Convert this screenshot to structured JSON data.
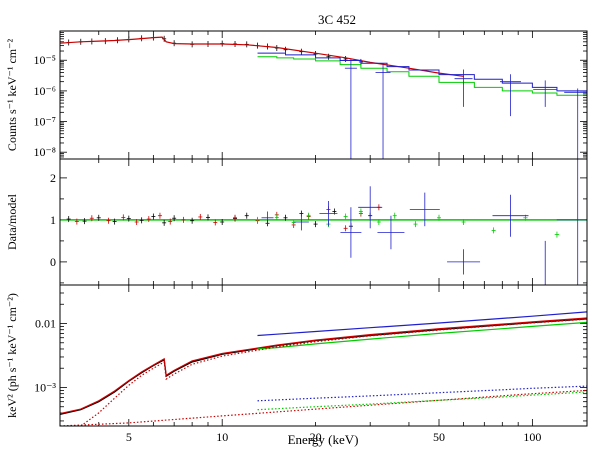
{
  "title": "3C 452",
  "xlabel": "Energy (keV)",
  "colors": {
    "black": "#000000",
    "red": "#cc0000",
    "green": "#00cc00",
    "blue": "#1f1fcc",
    "frame": "#000000"
  },
  "chart_data": [
    {
      "type": "scatter",
      "panel": "counts-spectrum",
      "ylabel": "Counts s⁻¹ keV⁻¹ cm⁻²",
      "x_scale": "log",
      "y_scale": "log",
      "xlim": [
        3,
        150
      ],
      "ylim": [
        6e-09,
        9e-05
      ],
      "y_ticks": [
        {
          "v": 1e-05,
          "label": "10⁻⁵"
        },
        {
          "v": 1e-06,
          "label": "10⁻⁶"
        },
        {
          "v": 1e-07,
          "label": "10⁻⁷"
        },
        {
          "v": 1e-08,
          "label": "10⁻⁸"
        }
      ],
      "series": [
        {
          "color": "#000000",
          "style": "points",
          "x": [
            3.2,
            3.5,
            3.8,
            4.2,
            4.6,
            5.0,
            5.5,
            6.0,
            6.5,
            7.0,
            8.0,
            9.0,
            10,
            11,
            12,
            13,
            14,
            15,
            16,
            18,
            20,
            22,
            25,
            28
          ],
          "y": [
            3.8e-05,
            4e-05,
            4.1e-05,
            4.2e-05,
            4.5e-05,
            4.8e-05,
            5.2e-05,
            5.5e-05,
            5e-05,
            3.6e-05,
            3.3e-05,
            3.4e-05,
            3.5e-05,
            3.4e-05,
            3.3e-05,
            3e-05,
            2.8e-05,
            2.5e-05,
            2.2e-05,
            1.9e-05,
            1.6e-05,
            1.3e-05,
            1.1e-05,
            8.8e-06
          ]
        },
        {
          "color": "#cc0000",
          "style": "line",
          "x": [
            3.0,
            3.5,
            4.0,
            4.5,
            5.0,
            5.5,
            6.0,
            6.4,
            6.6,
            7.0,
            8.0,
            9.0,
            10,
            12,
            15,
            20,
            25,
            30,
            40,
            50,
            60
          ],
          "y": [
            3.6e-05,
            4e-05,
            4.2e-05,
            4.4e-05,
            4.7e-05,
            5.1e-05,
            5.5e-05,
            5.7e-05,
            4e-05,
            3.5e-05,
            3.4e-05,
            3.4e-05,
            3.4e-05,
            3.2e-05,
            2.6e-05,
            1.7e-05,
            1.2e-05,
            8.5e-06,
            5.5e-06,
            3.8e-06,
            3e-06
          ]
        },
        {
          "color": "#00cc00",
          "style": "step",
          "x": [
            13,
            15,
            17,
            20,
            24,
            28,
            34,
            40,
            50,
            65,
            80,
            100,
            120,
            150
          ],
          "y": [
            1.3e-05,
            1.2e-05,
            1.1e-05,
            9.5e-06,
            7.2e-06,
            5.5e-06,
            4.2e-06,
            3e-06,
            1.9e-06,
            1.3e-06,
            1e-06,
            8.5e-07,
            7.2e-07,
            6e-07
          ]
        },
        {
          "color": "#1f1fcc",
          "style": "step",
          "x": [
            13,
            16,
            20,
            24,
            28,
            34,
            40,
            50,
            65,
            80,
            100,
            120,
            150
          ],
          "y": [
            1.7e-05,
            1.5e-05,
            1.2e-05,
            9.8e-06,
            8e-06,
            6.2e-06,
            4.8e-06,
            3.4e-06,
            2.4e-06,
            1.8e-06,
            1.3e-06,
            1e-06,
            8.2e-07
          ]
        },
        {
          "color": "#1f1fcc",
          "style": "errors",
          "x": [
            26,
            33,
            60,
            85,
            110,
            140
          ],
          "y": [
            5.5e-06,
            4e-06,
            2.5e-06,
            2e-06,
            1.1e-06,
            9e-07
          ],
          "ylo": [
            6e-09,
            6e-09,
            3e-07,
            1.5e-07,
            3e-07,
            6e-09
          ],
          "yhi": [
            1.1e-05,
            8e-06,
            5e-06,
            3.5e-06,
            2.2e-06,
            1.2e-06
          ]
        }
      ]
    },
    {
      "type": "scatter",
      "panel": "ratio",
      "ylabel": "Data/model",
      "x_scale": "log",
      "y_scale": "linear",
      "xlim": [
        3,
        150
      ],
      "ylim": [
        -0.55,
        2.45
      ],
      "y_ticks": [
        {
          "v": 0,
          "label": "0"
        },
        {
          "v": 1,
          "label": "1"
        },
        {
          "v": 2,
          "label": "2"
        }
      ],
      "reference_line": 1,
      "series": [
        {
          "color": "#000000",
          "style": "points",
          "x": [
            3.2,
            3.6,
            4.0,
            4.5,
            5.0,
            5.5,
            6.0,
            6.5,
            7.0,
            8.0,
            9.0,
            10,
            11,
            12,
            14,
            16,
            18,
            20,
            23,
            26,
            30
          ],
          "y": [
            1.02,
            0.97,
            1.05,
            0.96,
            1.03,
            0.99,
            1.08,
            0.93,
            1.04,
            0.98,
            1.06,
            0.95,
            1.03,
            1.1,
            0.92,
            1.05,
            1.15,
            0.9,
            1.2,
            0.85,
            1.1
          ]
        },
        {
          "color": "#cc0000",
          "style": "points",
          "x": [
            3.4,
            3.8,
            4.3,
            4.8,
            5.3,
            5.8,
            6.3,
            6.8,
            7.5,
            8.5,
            9.5,
            11,
            13,
            15,
            17,
            19,
            22,
            25,
            28,
            32
          ],
          "y": [
            0.96,
            1.04,
            0.98,
            1.06,
            0.95,
            1.02,
            1.1,
            0.96,
            1.0,
            1.07,
            0.94,
            1.05,
            0.98,
            1.12,
            0.88,
            1.08,
            1.25,
            0.8,
            1.15,
            1.3
          ]
        },
        {
          "color": "#00cc00",
          "style": "points",
          "x": [
            13,
            15,
            17,
            19,
            22,
            25,
            28,
            32,
            36,
            42,
            50,
            60,
            75,
            95,
            120
          ],
          "y": [
            1.0,
            1.06,
            0.94,
            1.1,
            0.9,
            1.08,
            1.2,
            0.95,
            1.1,
            0.9,
            1.05,
            0.95,
            0.75,
            1.05,
            0.65
          ]
        },
        {
          "color": "#1f1fcc",
          "style": "errors",
          "x": [
            14,
            18,
            22,
            26,
            30,
            35,
            45,
            60,
            85,
            110,
            140
          ],
          "y": [
            1.05,
            0.95,
            1.15,
            0.7,
            1.3,
            0.7,
            1.25,
            0.0,
            1.1,
            -0.6,
            1.0
          ],
          "ylo": [
            0.9,
            0.75,
            0.85,
            0.1,
            0.8,
            0.3,
            0.85,
            -0.3,
            0.6,
            -0.55,
            -0.55
          ],
          "yhi": [
            1.2,
            1.15,
            1.45,
            1.3,
            1.8,
            1.1,
            1.65,
            0.3,
            1.6,
            0.5,
            2.45
          ]
        }
      ]
    },
    {
      "type": "line",
      "panel": "unfolded-model",
      "ylabel": "keV² (ph s⁻¹ keV⁻¹ cm⁻²)",
      "x_scale": "log",
      "y_scale": "log",
      "xlim": [
        3,
        150
      ],
      "ylim": [
        0.00025,
        0.04
      ],
      "y_ticks": [
        {
          "v": 0.01,
          "label": "0.01"
        },
        {
          "v": 0.001,
          "label": "10⁻³"
        }
      ],
      "x_ticks": [
        {
          "v": 5,
          "label": "5"
        },
        {
          "v": 10,
          "label": "10"
        },
        {
          "v": 20,
          "label": "20"
        },
        {
          "v": 50,
          "label": "50"
        },
        {
          "v": 100,
          "label": "100"
        }
      ],
      "series": [
        {
          "color": "#000000",
          "style": "line",
          "x": [
            3.0,
            3.5,
            4.0,
            4.5,
            5.0,
            5.5,
            6.0,
            6.5,
            6.6,
            7.0,
            8.0,
            10,
            15,
            20,
            30,
            50,
            80,
            100,
            150
          ],
          "y": [
            0.00038,
            0.00045,
            0.0006,
            0.00085,
            0.00125,
            0.0017,
            0.0022,
            0.0027,
            0.0015,
            0.0018,
            0.0025,
            0.0033,
            0.0045,
            0.0054,
            0.0065,
            0.008,
            0.0095,
            0.0103,
            0.0118
          ]
        },
        {
          "color": "#cc0000",
          "style": "line",
          "x": [
            3.0,
            3.5,
            4.0,
            4.5,
            5.0,
            5.5,
            6.0,
            6.5,
            6.6,
            7.0,
            8.0,
            10,
            15,
            20,
            30,
            50,
            80,
            100,
            150
          ],
          "y": [
            0.00039,
            0.00046,
            0.00062,
            0.00088,
            0.00128,
            0.00175,
            0.00225,
            0.0028,
            0.00155,
            0.00185,
            0.0026,
            0.0034,
            0.0046,
            0.0055,
            0.0067,
            0.0083,
            0.0098,
            0.0106,
            0.0122
          ]
        },
        {
          "color": "#00cc00",
          "style": "line",
          "x": [
            13,
            15,
            20,
            30,
            50,
            80,
            100,
            150
          ],
          "y": [
            0.004,
            0.0042,
            0.0048,
            0.0057,
            0.007,
            0.0083,
            0.009,
            0.0104
          ]
        },
        {
          "color": "#1f1fcc",
          "style": "line",
          "x": [
            13,
            15,
            20,
            30,
            50,
            80,
            100,
            150
          ],
          "y": [
            0.0065,
            0.0068,
            0.0075,
            0.0086,
            0.0102,
            0.012,
            0.013,
            0.0152
          ]
        },
        {
          "color": "#cc0000",
          "style": "dotted",
          "x": [
            3.5,
            4.0,
            4.5,
            5.0,
            5.5,
            6.0,
            6.5,
            6.6,
            7.0,
            8.0,
            10,
            15,
            20,
            30,
            50,
            80,
            100,
            150
          ],
          "y": [
            0.00025,
            0.0004,
            0.00068,
            0.00108,
            0.00155,
            0.002,
            0.0025,
            0.00135,
            0.00162,
            0.0023,
            0.0031,
            0.0043,
            0.0052,
            0.0064,
            0.0079,
            0.0094,
            0.0102,
            0.0117
          ]
        },
        {
          "color": "#cc0000",
          "style": "dotted",
          "x": [
            3.0,
            5,
            10,
            20,
            50,
            100,
            150
          ],
          "y": [
            0.00025,
            0.00028,
            0.00036,
            0.00046,
            0.00063,
            0.0008,
            0.0009
          ]
        },
        {
          "color": "#1f1fcc",
          "style": "dotted",
          "x": [
            13,
            20,
            30,
            50,
            80,
            100,
            150
          ],
          "y": [
            0.00062,
            0.00068,
            0.00074,
            0.00083,
            0.00092,
            0.00097,
            0.00105
          ]
        },
        {
          "color": "#00cc00",
          "style": "dotted",
          "x": [
            13,
            20,
            30,
            50,
            80,
            100,
            150
          ],
          "y": [
            0.00045,
            0.0005,
            0.00055,
            0.00063,
            0.00071,
            0.00076,
            0.00085
          ]
        }
      ]
    }
  ]
}
